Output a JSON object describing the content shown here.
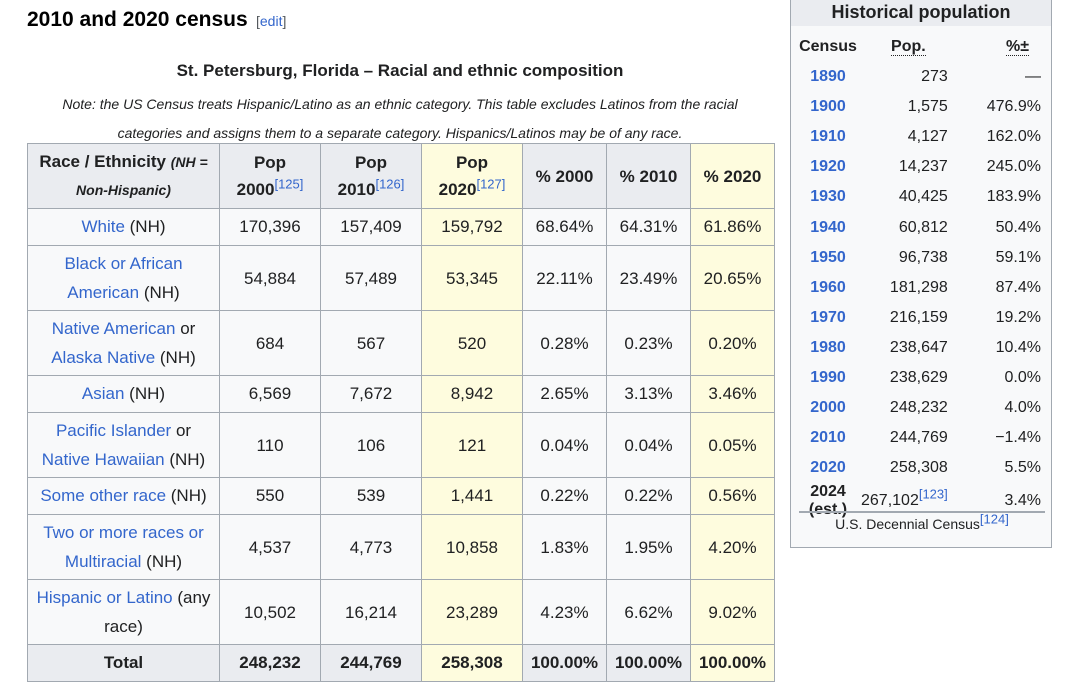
{
  "section": {
    "title": "2010 and 2020 census",
    "edit_open": "[",
    "edit_label": "edit",
    "edit_close": "]"
  },
  "caption": {
    "title": "St. Petersburg, Florida – Racial and ethnic composition",
    "note": "Note: the US Census treats Hispanic/Latino as an ethnic category. This table excludes Latinos from the racial categories and assigns them to a separate category. Hispanics/Latinos may be of any race."
  },
  "table": {
    "headers": {
      "race": "Race / Ethnicity",
      "race_note": "(NH = Non-Hispanic)",
      "pop2000": "Pop 2000",
      "pop2000_ref": "[125]",
      "pop2010": "Pop 2010",
      "pop2010_ref": "[126]",
      "pop2020": "Pop 2020",
      "pop2020_ref": "[127]",
      "pct2000": "% 2000",
      "pct2010": "% 2010",
      "pct2020": "% 2020"
    },
    "rows": [
      {
        "link": "White",
        "suffix": " (NH)",
        "p2000": "170,396",
        "p2010": "157,409",
        "p2020": "159,792",
        "c2000": "68.64%",
        "c2010": "64.31%",
        "c2020": "61.86%"
      },
      {
        "link": "Black or African American",
        "suffix": " (NH)",
        "p2000": "54,884",
        "p2010": "57,489",
        "p2020": "53,345",
        "c2000": "22.11%",
        "c2010": "23.49%",
        "c2020": "20.65%"
      },
      {
        "link": "Native American",
        "mid": " or ",
        "link2": "Alaska Native",
        "suffix": " (NH)",
        "p2000": "684",
        "p2010": "567",
        "p2020": "520",
        "c2000": "0.28%",
        "c2010": "0.23%",
        "c2020": "0.20%"
      },
      {
        "link": "Asian",
        "suffix": " (NH)",
        "p2000": "6,569",
        "p2010": "7,672",
        "p2020": "8,942",
        "c2000": "2.65%",
        "c2010": "3.13%",
        "c2020": "3.46%"
      },
      {
        "link": "Pacific Islander",
        "mid": " or ",
        "link2": "Native Hawaiian",
        "suffix": " (NH)",
        "p2000": "110",
        "p2010": "106",
        "p2020": "121",
        "c2000": "0.04%",
        "c2010": "0.04%",
        "c2020": "0.05%"
      },
      {
        "link": "Some other race",
        "suffix": " (NH)",
        "p2000": "550",
        "p2010": "539",
        "p2020": "1,441",
        "c2000": "0.22%",
        "c2010": "0.22%",
        "c2020": "0.56%"
      },
      {
        "link": "Two or more races or Multiracial",
        "suffix": " (NH)",
        "p2000": "4,537",
        "p2010": "4,773",
        "p2020": "10,858",
        "c2000": "1.83%",
        "c2010": "1.95%",
        "c2020": "4.20%"
      },
      {
        "link": "Hispanic or Latino",
        "suffix": " (any race)",
        "p2000": "10,502",
        "p2010": "16,214",
        "p2020": "23,289",
        "c2000": "4.23%",
        "c2010": "6.62%",
        "c2020": "9.02%"
      }
    ],
    "total": {
      "label": "Total",
      "p2000": "248,232",
      "p2010": "244,769",
      "p2020": "258,308",
      "c2000": "100.00%",
      "c2010": "100.00%",
      "c2020": "100.00%"
    }
  },
  "historical": {
    "title": "Historical population",
    "col_census": "Census",
    "col_pop": "Pop.",
    "col_change": "%±",
    "rows": [
      {
        "year": "1890",
        "pop": "273",
        "change": "—"
      },
      {
        "year": "1900",
        "pop": "1,575",
        "change": "476.9%"
      },
      {
        "year": "1910",
        "pop": "4,127",
        "change": "162.0%"
      },
      {
        "year": "1920",
        "pop": "14,237",
        "change": "245.0%"
      },
      {
        "year": "1930",
        "pop": "40,425",
        "change": "183.9%"
      },
      {
        "year": "1940",
        "pop": "60,812",
        "change": "50.4%"
      },
      {
        "year": "1950",
        "pop": "96,738",
        "change": "59.1%"
      },
      {
        "year": "1960",
        "pop": "181,298",
        "change": "87.4%"
      },
      {
        "year": "1970",
        "pop": "216,159",
        "change": "19.2%"
      },
      {
        "year": "1980",
        "pop": "238,647",
        "change": "10.4%"
      },
      {
        "year": "1990",
        "pop": "238,629",
        "change": "0.0%"
      },
      {
        "year": "2000",
        "pop": "248,232",
        "change": "4.0%"
      },
      {
        "year": "2010",
        "pop": "244,769",
        "change": "−1.4%"
      },
      {
        "year": "2020",
        "pop": "258,308",
        "change": "5.5%"
      }
    ],
    "est": {
      "year": "2024 (est.)",
      "pop": "267,102",
      "ref": "[123]",
      "change": "3.4%"
    },
    "footer": "U.S. Decennial Census",
    "footer_ref": "[124]"
  }
}
